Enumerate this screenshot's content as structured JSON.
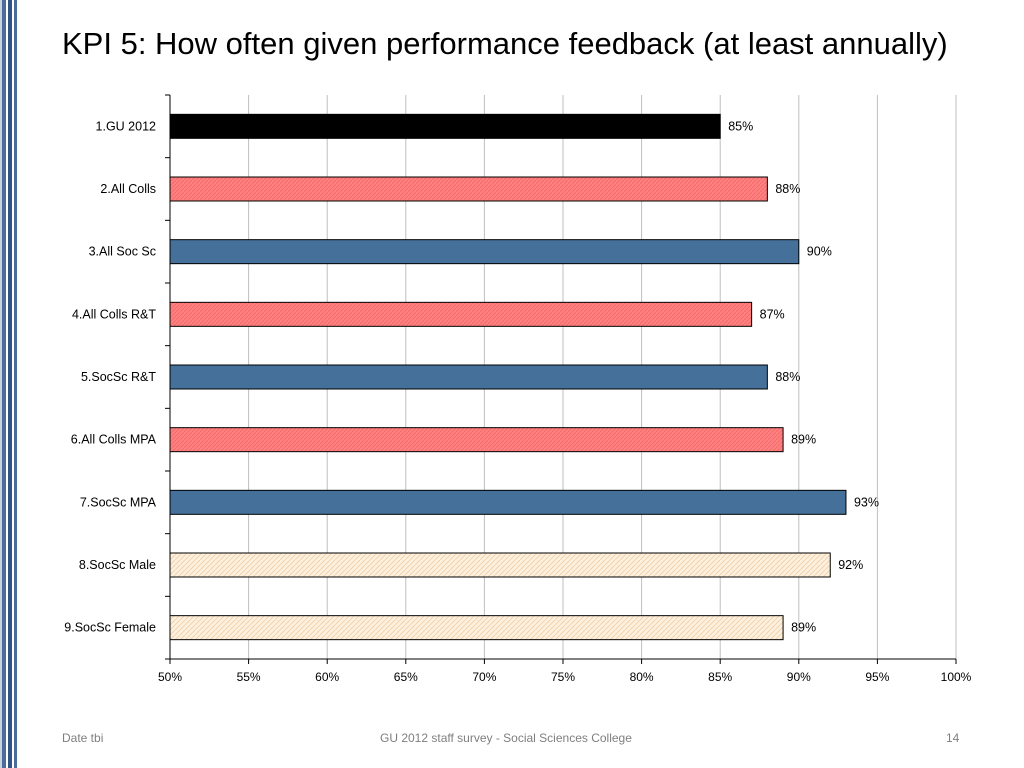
{
  "slide": {
    "title": "KPI 5: How often given performance feedback (at least annually)",
    "footer_left": "Date tbi",
    "footer_center": "GU 2012 staff survey -  Social Sciences College",
    "page_number": "14"
  },
  "chart_data": {
    "type": "bar",
    "orientation": "horizontal",
    "title": "KPI 5: How often given performance feedback (at least annually)",
    "xlabel": "",
    "ylabel": "",
    "xlim": [
      50,
      100
    ],
    "grid": true,
    "x_ticks": [
      "50%",
      "55%",
      "60%",
      "65%",
      "70%",
      "75%",
      "80%",
      "85%",
      "90%",
      "95%",
      "100%"
    ],
    "x_tick_values": [
      50,
      55,
      60,
      65,
      70,
      75,
      80,
      85,
      90,
      95,
      100
    ],
    "categories": [
      "1.GU 2012",
      "2.All Colls",
      "3.All Soc Sc",
      "4.All Colls R&T",
      "5.SocSc R&T",
      "6.All Colls MPA",
      "7.SocSc MPA",
      "8.SocSc Male",
      "9.SocSc Female"
    ],
    "values": [
      85,
      88,
      90,
      87,
      88,
      89,
      93,
      92,
      89
    ],
    "value_labels": [
      "85%",
      "88%",
      "90%",
      "87%",
      "88%",
      "89%",
      "93%",
      "92%",
      "89%"
    ],
    "bar_styles": [
      "black",
      "pink",
      "blue",
      "pink",
      "blue",
      "pink",
      "blue",
      "cream",
      "cream"
    ]
  },
  "colors": {
    "black": "#000000",
    "pink": "#ff8080",
    "blue": "#44709a",
    "cream": "#fbe9d2",
    "grid": "#bfbfbf",
    "axis": "#000000"
  }
}
